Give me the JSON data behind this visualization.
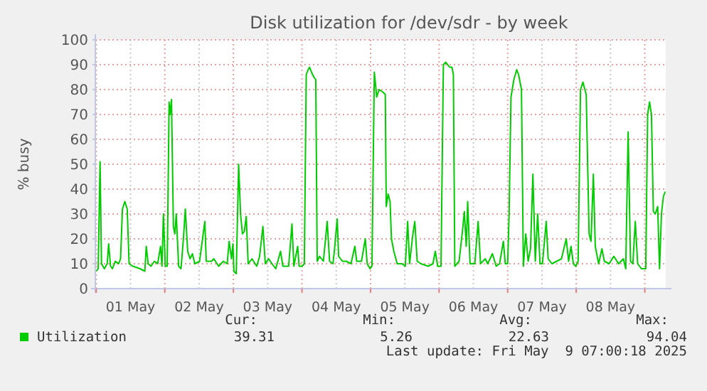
{
  "chart_data": {
    "type": "line",
    "title": "Disk utilization for /dev/sdr - by week",
    "ylabel": "% busy",
    "xlim": [
      "2025-04-30T23:40",
      "2025-05-09T07:20"
    ],
    "ylim": [
      0,
      100
    ],
    "yticks": [
      0,
      10,
      20,
      30,
      40,
      50,
      60,
      70,
      80,
      90,
      100
    ],
    "xticks": [
      {
        "value": "2025-05-01T00:00",
        "label": null
      },
      {
        "value": "2025-05-01T12:00",
        "label": "01 May"
      },
      {
        "value": "2025-05-02T00:00",
        "label": null
      },
      {
        "value": "2025-05-02T12:00",
        "label": "02 May"
      },
      {
        "value": "2025-05-03T00:00",
        "label": null
      },
      {
        "value": "2025-05-03T12:00",
        "label": "03 May"
      },
      {
        "value": "2025-05-04T00:00",
        "label": null
      },
      {
        "value": "2025-05-04T12:00",
        "label": "04 May"
      },
      {
        "value": "2025-05-05T00:00",
        "label": null
      },
      {
        "value": "2025-05-05T12:00",
        "label": "05 May"
      },
      {
        "value": "2025-05-06T00:00",
        "label": null
      },
      {
        "value": "2025-05-06T12:00",
        "label": "06 May"
      },
      {
        "value": "2025-05-07T00:00",
        "label": null
      },
      {
        "value": "2025-05-07T12:00",
        "label": "07 May"
      },
      {
        "value": "2025-05-08T00:00",
        "label": null
      },
      {
        "value": "2025-05-08T12:00",
        "label": "08 May"
      },
      {
        "value": "2025-05-09T00:00",
        "label": null
      }
    ],
    "grid": true,
    "legend": "bottom left",
    "marker": "none",
    "line_style": "solid",
    "annotations": [
      "Cur:",
      "Min:",
      "Avg:",
      "Max:",
      "39.31",
      "5.26",
      "22.63",
      "94.04",
      "Last update: Fri May  9 07:00:18 2025"
    ],
    "series": [
      {
        "name": "Utilization",
        "color": "#00cc00",
        "x": [
          "2025-05-01T00:00",
          "2025-05-01T00:40",
          "2025-05-01T01:20",
          "2025-05-01T01:50",
          "2025-05-01T02:50",
          "2025-05-01T03:50",
          "2025-05-01T04:20",
          "2025-05-01T05:00",
          "2025-05-01T05:40",
          "2025-05-01T06:40",
          "2025-05-01T07:50",
          "2025-05-01T08:30",
          "2025-05-01T09:10",
          "2025-05-01T10:00",
          "2025-05-01T10:50",
          "2025-05-01T11:30",
          "2025-05-01T12:50",
          "2025-05-01T15:20",
          "2025-05-01T17:00",
          "2025-05-01T17:30",
          "2025-05-01T18:10",
          "2025-05-01T19:10",
          "2025-05-01T20:20",
          "2025-05-01T21:30",
          "2025-05-01T22:30",
          "2025-05-01T23:00",
          "2025-05-01T23:30",
          "2025-05-02T00:10",
          "2025-05-02T00:50",
          "2025-05-02T01:30",
          "2025-05-02T01:50",
          "2025-05-02T02:20",
          "2025-05-02T03:00",
          "2025-05-02T03:30",
          "2025-05-02T04:00",
          "2025-05-02T04:50",
          "2025-05-02T05:40",
          "2025-05-02T06:30",
          "2025-05-02T07:10",
          "2025-05-02T08:00",
          "2025-05-02T08:50",
          "2025-05-02T09:40",
          "2025-05-02T10:30",
          "2025-05-02T12:10",
          "2025-05-02T14:00",
          "2025-05-02T14:30",
          "2025-05-02T16:20",
          "2025-05-02T17:10",
          "2025-05-02T18:50",
          "2025-05-02T20:30",
          "2025-05-02T21:50",
          "2025-05-02T22:30",
          "2025-05-02T23:20",
          "2025-05-02T23:50",
          "2025-05-03T00:10",
          "2025-05-03T01:00",
          "2025-05-03T01:50",
          "2025-05-03T02:30",
          "2025-05-03T03:10",
          "2025-05-03T03:50",
          "2025-05-03T04:30",
          "2025-05-03T05:10",
          "2025-05-03T06:30",
          "2025-05-03T08:10",
          "2025-05-03T09:10",
          "2025-05-03T10:20",
          "2025-05-03T11:10",
          "2025-05-03T12:20",
          "2025-05-03T13:30",
          "2025-05-03T14:50",
          "2025-05-03T16:30",
          "2025-05-03T17:20",
          "2025-05-03T18:20",
          "2025-05-03T19:20",
          "2025-05-03T20:30",
          "2025-05-03T21:10",
          "2025-05-03T22:30",
          "2025-05-03T23:00",
          "2025-05-04T00:00",
          "2025-05-04T00:50",
          "2025-05-04T01:30",
          "2025-05-04T02:10",
          "2025-05-04T02:40",
          "2025-05-04T03:20",
          "2025-05-04T04:10",
          "2025-05-04T04:50",
          "2025-05-04T05:20",
          "2025-05-04T06:10",
          "2025-05-04T07:30",
          "2025-05-04T08:50",
          "2025-05-04T09:40",
          "2025-05-04T10:50",
          "2025-05-04T11:20",
          "2025-05-04T12:20",
          "2025-05-04T12:50",
          "2025-05-04T14:10",
          "2025-05-04T15:30",
          "2025-05-04T17:10",
          "2025-05-04T18:30",
          "2025-05-04T19:10",
          "2025-05-04T20:50",
          "2025-05-04T22:10",
          "2025-05-04T22:50",
          "2025-05-04T23:50",
          "2025-05-05T00:30",
          "2025-05-05T01:20",
          "2025-05-05T02:10",
          "2025-05-05T03:00",
          "2025-05-05T04:20",
          "2025-05-05T05:10",
          "2025-05-05T05:30",
          "2025-05-05T06:10",
          "2025-05-05T06:50",
          "2025-05-05T07:20",
          "2025-05-05T08:10",
          "2025-05-05T09:20",
          "2025-05-05T11:00",
          "2025-05-05T12:10",
          "2025-05-05T13:00",
          "2025-05-05T13:40",
          "2025-05-05T14:50",
          "2025-05-05T15:30",
          "2025-05-05T16:20",
          "2025-05-05T17:40",
          "2025-05-05T20:10",
          "2025-05-05T21:50",
          "2025-05-05T22:40",
          "2025-05-05T23:30",
          "2025-05-06T00:40",
          "2025-05-06T01:30",
          "2025-05-06T02:20",
          "2025-05-06T03:40",
          "2025-05-06T04:30",
          "2025-05-06T05:00",
          "2025-05-06T05:30",
          "2025-05-06T07:00",
          "2025-05-06T08:10",
          "2025-05-06T08:50",
          "2025-05-06T09:30",
          "2025-05-06T10:00",
          "2025-05-06T10:50",
          "2025-05-06T12:30",
          "2025-05-06T13:40",
          "2025-05-06T14:30",
          "2025-05-06T16:10",
          "2025-05-06T17:00",
          "2025-05-06T18:40",
          "2025-05-06T20:00",
          "2025-05-06T21:10",
          "2025-05-06T22:30",
          "2025-05-06T23:10",
          "2025-05-07T00:00",
          "2025-05-07T00:30",
          "2025-05-07T01:10",
          "2025-05-07T02:10",
          "2025-05-07T03:10",
          "2025-05-07T03:50",
          "2025-05-07T04:50",
          "2025-05-07T05:30",
          "2025-05-07T06:20",
          "2025-05-07T07:10",
          "2025-05-07T08:00",
          "2025-05-07T08:50",
          "2025-05-07T09:40",
          "2025-05-07T10:30",
          "2025-05-07T11:20",
          "2025-05-07T12:10",
          "2025-05-07T13:30",
          "2025-05-07T14:10",
          "2025-05-07T15:30",
          "2025-05-07T17:10",
          "2025-05-07T18:50",
          "2025-05-07T20:30",
          "2025-05-07T21:20",
          "2025-05-07T22:10",
          "2025-05-07T23:00",
          "2025-05-07T23:50",
          "2025-05-08T00:40",
          "2025-05-08T01:30",
          "2025-05-08T02:20",
          "2025-05-08T03:30",
          "2025-05-08T04:30",
          "2025-05-08T05:10",
          "2025-05-08T06:00",
          "2025-05-08T06:40",
          "2025-05-08T07:50",
          "2025-05-08T09:00",
          "2025-05-08T09:50",
          "2025-05-08T11:30",
          "2025-05-08T13:10",
          "2025-05-08T14:50",
          "2025-05-08T16:30",
          "2025-05-08T17:20",
          "2025-05-08T18:10",
          "2025-05-08T19:00",
          "2025-05-08T19:50",
          "2025-05-08T20:40",
          "2025-05-08T21:30",
          "2025-05-08T22:50",
          "2025-05-08T23:40",
          "2025-05-09T00:20",
          "2025-05-09T01:00",
          "2025-05-09T01:40",
          "2025-05-09T02:20",
          "2025-05-09T03:00",
          "2025-05-09T03:40",
          "2025-05-09T04:30",
          "2025-05-09T05:10",
          "2025-05-09T05:50",
          "2025-05-09T06:30",
          "2025-05-09T07:10"
        ],
        "values": [
          7,
          8,
          51,
          10,
          8,
          10,
          18,
          9,
          8,
          11,
          10,
          12,
          32,
          35,
          32,
          10,
          9,
          8,
          7,
          17,
          10,
          9,
          11,
          10,
          17,
          9,
          30,
          9,
          9,
          75,
          70,
          76,
          25,
          22,
          30,
          9,
          8,
          20,
          32,
          15,
          12,
          14,
          10,
          11,
          27,
          11,
          11,
          12,
          9,
          11,
          10,
          19,
          12,
          18,
          7,
          6,
          50,
          30,
          22,
          23,
          29,
          10,
          12,
          9,
          13,
          25,
          10,
          12,
          10,
          8,
          15,
          9,
          9,
          9,
          26,
          9,
          17,
          9,
          9,
          10,
          86,
          88,
          89,
          87,
          85,
          84,
          11,
          13,
          11,
          27,
          11,
          10,
          15,
          28,
          13,
          11,
          11,
          10,
          17,
          11,
          11,
          20,
          10,
          8,
          9,
          87,
          77,
          80,
          79,
          78,
          33,
          38,
          35,
          20,
          15,
          10,
          10,
          9,
          27,
          10,
          22,
          27,
          11,
          10,
          9,
          10,
          15,
          9,
          9,
          90,
          91,
          89,
          89,
          86,
          9,
          11,
          23,
          31,
          17,
          35,
          10,
          10,
          27,
          10,
          12,
          10,
          14,
          9,
          10,
          19,
          10,
          10,
          30,
          77,
          84,
          88,
          86,
          80,
          9,
          22,
          11,
          16,
          46,
          11,
          30,
          10,
          10,
          27,
          12,
          10,
          11,
          12,
          20,
          11,
          17,
          10,
          9,
          11,
          80,
          83,
          78,
          22,
          19,
          46,
          17,
          10,
          16,
          11,
          10,
          13,
          10,
          12,
          8,
          63,
          11,
          10,
          27,
          10,
          8,
          8,
          8,
          70,
          75,
          70,
          31,
          30,
          33,
          8,
          30,
          37,
          39
        ]
      }
    ]
  }
}
